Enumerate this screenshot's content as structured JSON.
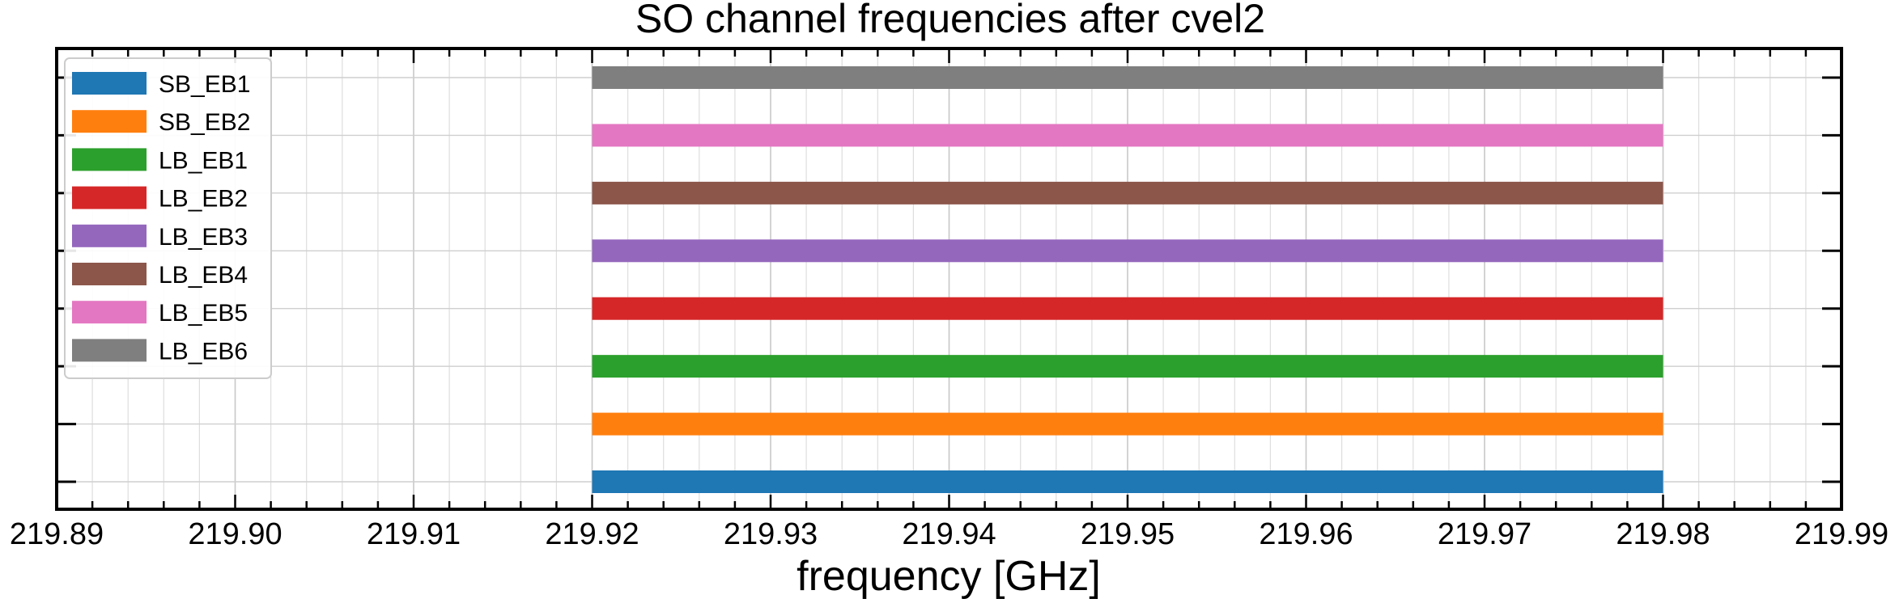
{
  "chart_data": {
    "type": "bar",
    "orientation": "horizontal-range",
    "title": "SO channel frequencies after cvel2",
    "xlabel": "frequency [GHz]",
    "ylabel": "",
    "xlim": [
      219.89,
      219.99
    ],
    "x_ticks": [
      "219.89",
      "219.90",
      "219.91",
      "219.92",
      "219.93",
      "219.94",
      "219.95",
      "219.96",
      "219.97",
      "219.98",
      "219.99"
    ],
    "grid": true,
    "legend_position": "top-left",
    "series": [
      {
        "name": "SB_EB1",
        "start": 219.92,
        "end": 219.98,
        "color": "#1f77b4"
      },
      {
        "name": "SB_EB2",
        "start": 219.92,
        "end": 219.98,
        "color": "#ff7f0e"
      },
      {
        "name": "LB_EB1",
        "start": 219.92,
        "end": 219.98,
        "color": "#2ca02c"
      },
      {
        "name": "LB_EB2",
        "start": 219.92,
        "end": 219.98,
        "color": "#d62728"
      },
      {
        "name": "LB_EB3",
        "start": 219.92,
        "end": 219.98,
        "color": "#9467bd"
      },
      {
        "name": "LB_EB4",
        "start": 219.92,
        "end": 219.98,
        "color": "#8c564b"
      },
      {
        "name": "LB_EB5",
        "start": 219.92,
        "end": 219.98,
        "color": "#e377c2"
      },
      {
        "name": "LB_EB6",
        "start": 219.92,
        "end": 219.98,
        "color": "#7f7f7f"
      }
    ]
  }
}
